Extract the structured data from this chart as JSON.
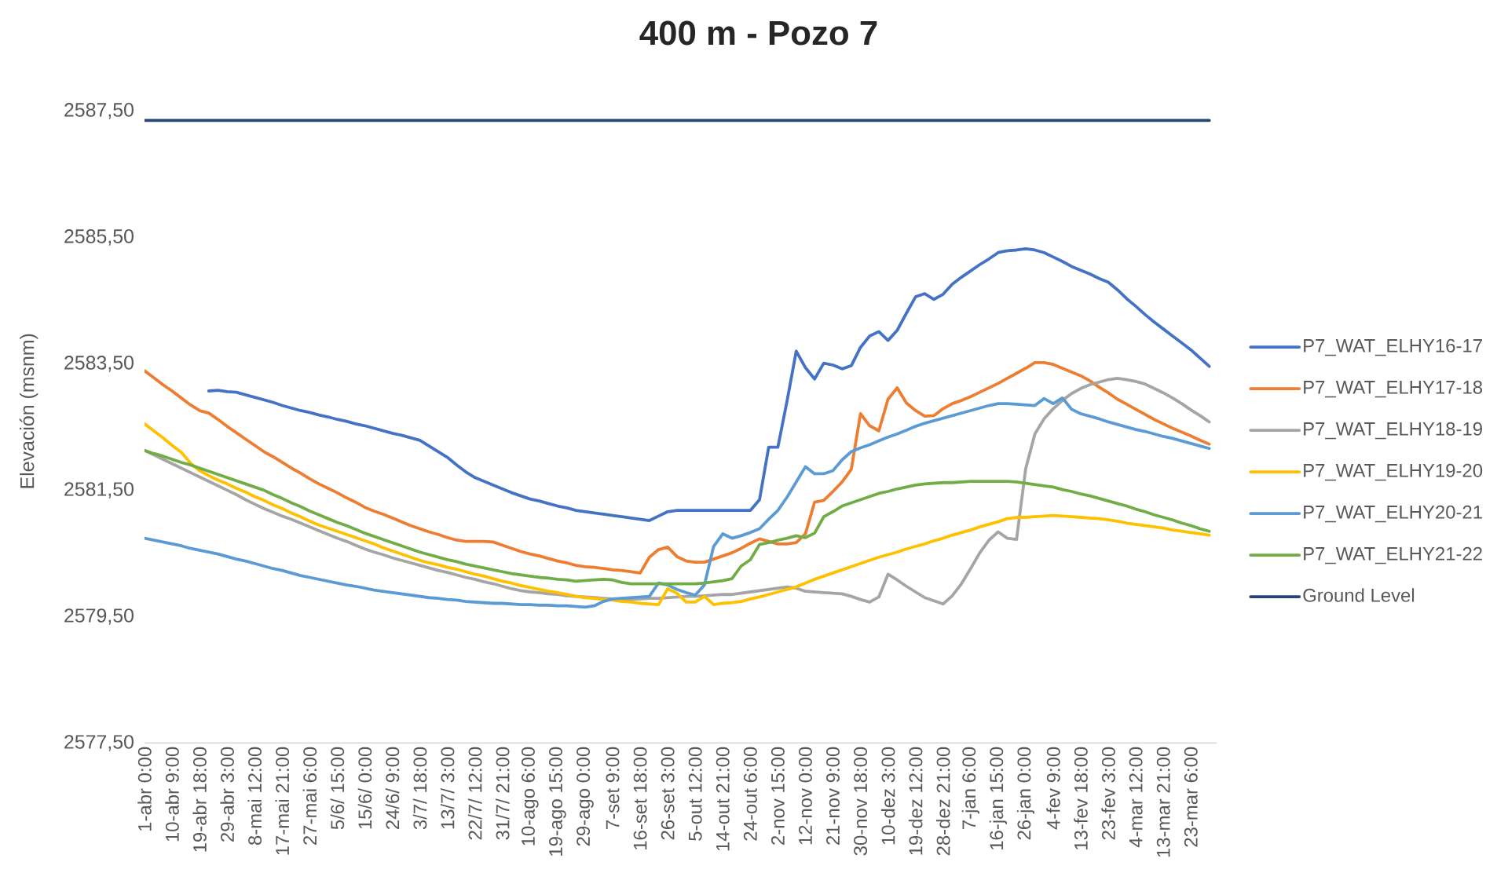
{
  "chart_data": {
    "type": "line",
    "title": "400 m - Pozo 7",
    "ylabel": "Elevación (msnm)",
    "categories": [
      "1-abr 0:00",
      null,
      null,
      "10-abr 9:00",
      null,
      null,
      "19-abr 18:00",
      null,
      null,
      "29-abr 3:00",
      null,
      null,
      "8-mai 12:00",
      null,
      null,
      "17-mai 21:00",
      null,
      null,
      "27-mai 6:00",
      null,
      null,
      "5/6/ 15:00",
      null,
      null,
      "15/6/ 0:00",
      null,
      null,
      "24/6/ 9:00",
      null,
      null,
      "3/7/ 18:00",
      null,
      null,
      "13/7/ 3:00",
      null,
      null,
      "22/7/ 12:00",
      null,
      null,
      "31/7/ 21:00",
      null,
      null,
      "10-ago 6:00",
      null,
      null,
      "19-ago 15:00",
      null,
      null,
      "29-ago 0:00",
      null,
      null,
      "7-set 9:00",
      null,
      null,
      "16-set 18:00",
      null,
      null,
      "26-set 3:00",
      null,
      null,
      "5-out 12:00",
      null,
      null,
      "14-out 21:00",
      null,
      null,
      "24-out 6:00",
      null,
      null,
      "2-nov 15:00",
      null,
      null,
      "12-nov 0:00",
      null,
      null,
      "21-nov 9:00",
      null,
      null,
      "30-nov 18:00",
      null,
      null,
      "10-dez 3:00",
      null,
      null,
      "19-dez 12:00",
      null,
      null,
      "28-dez 21:00",
      null,
      null,
      "7-jan 6:00",
      null,
      null,
      "16-jan 15:00",
      null,
      null,
      "26-jan 0:00",
      null,
      null,
      "4-fev 9:00",
      null,
      null,
      "13-fev 18:00",
      null,
      null,
      "23-fev 3:00",
      null,
      null,
      "4-mar 12:00",
      null,
      null,
      "13-mar 21:00",
      null,
      null,
      "23-mar 6:00",
      null,
      null
    ],
    "ylim": [
      2577.5,
      2587.5
    ],
    "yticks": [
      {
        "value": 2577.5,
        "label": "2577,50"
      },
      {
        "value": 2579.5,
        "label": "2579,50"
      },
      {
        "value": 2581.5,
        "label": "2581,50"
      },
      {
        "value": 2583.5,
        "label": "2583,50"
      },
      {
        "value": 2585.5,
        "label": "2585,50"
      },
      {
        "value": 2587.5,
        "label": "2587,50"
      }
    ],
    "legend": "right",
    "marker": "none",
    "series": [
      {
        "name": "P7_WAT_ELHY16-17",
        "color": "#4472c4",
        "values": [
          null,
          null,
          null,
          null,
          null,
          null,
          null,
          2583.07,
          2583.08,
          2583.06,
          2583.05,
          2583.01,
          2582.97,
          2582.93,
          2582.89,
          2582.84,
          2582.8,
          2582.76,
          2582.73,
          2582.69,
          2582.66,
          2582.62,
          2582.59,
          2582.55,
          2582.52,
          2582.48,
          2582.44,
          2582.4,
          2582.37,
          2582.33,
          2582.29,
          2582.2,
          2582.11,
          2582.02,
          2581.9,
          2581.79,
          2581.7,
          2581.64,
          2581.58,
          2581.52,
          2581.46,
          2581.41,
          2581.36,
          2581.33,
          2581.29,
          2581.25,
          2581.22,
          2581.18,
          2581.16,
          2581.14,
          2581.12,
          2581.1,
          2581.08,
          2581.06,
          2581.04,
          2581.02,
          2581.09,
          2581.16,
          2581.18,
          2581.18,
          2581.18,
          2581.18,
          2581.18,
          2581.18,
          2581.18,
          2581.18,
          2581.18,
          2581.35,
          2582.18,
          2582.18,
          2582.91,
          2583.7,
          2583.44,
          2583.26,
          2583.51,
          2583.48,
          2583.42,
          2583.47,
          2583.76,
          2583.94,
          2584.01,
          2583.87,
          2584.03,
          2584.3,
          2584.56,
          2584.61,
          2584.52,
          2584.6,
          2584.76,
          2584.87,
          2584.97,
          2585.07,
          2585.16,
          2585.26,
          2585.29,
          2585.3,
          2585.32,
          2585.3,
          2585.26,
          2585.19,
          2585.12,
          2585.04,
          2584.98,
          2584.92,
          2584.85,
          2584.79,
          2584.67,
          2584.53,
          2584.41,
          2584.28,
          2584.16,
          2584.05,
          2583.94,
          2583.83,
          2583.72,
          2583.59,
          2583.46
        ]
      },
      {
        "name": "P7_WAT_ELHY17-18",
        "color": "#ed7d31",
        "values": [
          2583.39,
          2583.28,
          2583.17,
          2583.07,
          2582.96,
          2582.85,
          2582.76,
          2582.72,
          2582.62,
          2582.51,
          2582.41,
          2582.31,
          2582.21,
          2582.11,
          2582.03,
          2581.94,
          2581.85,
          2581.77,
          2581.68,
          2581.6,
          2581.53,
          2581.46,
          2581.38,
          2581.31,
          2581.23,
          2581.17,
          2581.12,
          2581.06,
          2581.0,
          2580.94,
          2580.89,
          2580.84,
          2580.8,
          2580.75,
          2580.71,
          2580.69,
          2580.69,
          2580.69,
          2580.68,
          2580.63,
          2580.58,
          2580.53,
          2580.49,
          2580.46,
          2580.42,
          2580.38,
          2580.35,
          2580.31,
          2580.29,
          2580.28,
          2580.26,
          2580.24,
          2580.23,
          2580.21,
          2580.19,
          2580.44,
          2580.56,
          2580.6,
          2580.45,
          2580.38,
          2580.36,
          2580.36,
          2580.41,
          2580.46,
          2580.51,
          2580.58,
          2580.66,
          2580.73,
          2580.69,
          2580.65,
          2580.65,
          2580.67,
          2580.81,
          2581.31,
          2581.34,
          2581.48,
          2581.63,
          2581.83,
          2582.71,
          2582.52,
          2582.44,
          2582.94,
          2583.12,
          2582.88,
          2582.76,
          2582.67,
          2582.68,
          2582.79,
          2582.87,
          2582.92,
          2582.98,
          2583.05,
          2583.12,
          2583.19,
          2583.27,
          2583.35,
          2583.43,
          2583.52,
          2583.52,
          2583.49,
          2583.43,
          2583.37,
          2583.31,
          2583.23,
          2583.13,
          2583.04,
          2582.94,
          2582.86,
          2582.78,
          2582.7,
          2582.62,
          2582.55,
          2582.48,
          2582.42,
          2582.36,
          2582.29,
          2582.23
        ]
      },
      {
        "name": "P7_WAT_ELHY18-19",
        "color": "#a5a5a5",
        "values": [
          2582.13,
          2582.06,
          2581.99,
          2581.92,
          2581.85,
          2581.78,
          2581.71,
          2581.64,
          2581.57,
          2581.5,
          2581.43,
          2581.35,
          2581.28,
          2581.21,
          2581.15,
          2581.09,
          2581.04,
          2580.98,
          2580.92,
          2580.86,
          2580.8,
          2580.74,
          2580.69,
          2580.63,
          2580.57,
          2580.52,
          2580.48,
          2580.43,
          2580.39,
          2580.35,
          2580.31,
          2580.27,
          2580.23,
          2580.2,
          2580.16,
          2580.12,
          2580.09,
          2580.05,
          2580.02,
          2579.98,
          2579.94,
          2579.91,
          2579.89,
          2579.88,
          2579.86,
          2579.85,
          2579.83,
          2579.82,
          2579.81,
          2579.8,
          2579.79,
          2579.78,
          2579.78,
          2579.77,
          2579.78,
          2579.79,
          2579.79,
          2579.8,
          2579.81,
          2579.82,
          2579.82,
          2579.83,
          2579.84,
          2579.85,
          2579.85,
          2579.87,
          2579.89,
          2579.91,
          2579.93,
          2579.95,
          2579.97,
          2579.95,
          2579.9,
          2579.89,
          2579.88,
          2579.87,
          2579.86,
          2579.82,
          2579.77,
          2579.73,
          2579.81,
          2580.17,
          2580.08,
          2579.98,
          2579.89,
          2579.8,
          2579.75,
          2579.7,
          2579.83,
          2580.02,
          2580.26,
          2580.51,
          2580.71,
          2580.84,
          2580.74,
          2580.72,
          2581.84,
          2582.39,
          2582.63,
          2582.79,
          2582.92,
          2583.03,
          2583.11,
          2583.17,
          2583.21,
          2583.25,
          2583.27,
          2583.25,
          2583.22,
          2583.18,
          2583.11,
          2583.04,
          2582.96,
          2582.87,
          2582.77,
          2582.68,
          2582.58
        ]
      },
      {
        "name": "P7_WAT_ELHY19-20",
        "color": "#ffc000",
        "values": [
          2582.55,
          2582.44,
          2582.33,
          2582.21,
          2582.1,
          2581.93,
          2581.81,
          2581.73,
          2581.66,
          2581.6,
          2581.53,
          2581.47,
          2581.4,
          2581.34,
          2581.27,
          2581.21,
          2581.14,
          2581.08,
          2581.01,
          2580.95,
          2580.9,
          2580.85,
          2580.8,
          2580.75,
          2580.7,
          2580.65,
          2580.59,
          2580.54,
          2580.49,
          2580.44,
          2580.39,
          2580.35,
          2580.32,
          2580.28,
          2580.25,
          2580.21,
          2580.17,
          2580.14,
          2580.1,
          2580.06,
          2580.03,
          2579.99,
          2579.96,
          2579.93,
          2579.9,
          2579.88,
          2579.85,
          2579.82,
          2579.8,
          2579.79,
          2579.77,
          2579.76,
          2579.74,
          2579.73,
          2579.71,
          2579.7,
          2579.69,
          2579.94,
          2579.87,
          2579.73,
          2579.73,
          2579.82,
          2579.69,
          2579.71,
          2579.72,
          2579.74,
          2579.78,
          2579.81,
          2579.85,
          2579.89,
          2579.93,
          2579.97,
          2580.03,
          2580.09,
          2580.14,
          2580.19,
          2580.24,
          2580.29,
          2580.34,
          2580.39,
          2580.44,
          2580.48,
          2580.52,
          2580.57,
          2580.61,
          2580.65,
          2580.7,
          2580.74,
          2580.79,
          2580.83,
          2580.87,
          2580.92,
          2580.96,
          2581.0,
          2581.05,
          2581.07,
          2581.07,
          2581.08,
          2581.09,
          2581.1,
          2581.09,
          2581.08,
          2581.07,
          2581.06,
          2581.05,
          2581.03,
          2581.01,
          2580.98,
          2580.96,
          2580.94,
          2580.92,
          2580.9,
          2580.87,
          2580.85,
          2580.83,
          2580.81,
          2580.79
        ]
      },
      {
        "name": "P7_WAT_ELHY20-21",
        "color": "#5b9bd5",
        "values": [
          2580.74,
          2580.71,
          2580.68,
          2580.65,
          2580.62,
          2580.58,
          2580.55,
          2580.52,
          2580.49,
          2580.45,
          2580.41,
          2580.38,
          2580.34,
          2580.3,
          2580.26,
          2580.23,
          2580.19,
          2580.15,
          2580.12,
          2580.09,
          2580.06,
          2580.03,
          2580.0,
          2579.98,
          2579.95,
          2579.92,
          2579.9,
          2579.88,
          2579.86,
          2579.84,
          2579.82,
          2579.8,
          2579.79,
          2579.77,
          2579.76,
          2579.74,
          2579.73,
          2579.72,
          2579.71,
          2579.71,
          2579.7,
          2579.69,
          2579.69,
          2579.68,
          2579.68,
          2579.67,
          2579.67,
          2579.66,
          2579.65,
          2579.67,
          2579.74,
          2579.78,
          2579.79,
          2579.8,
          2579.81,
          2579.82,
          2580.03,
          2580.0,
          2579.93,
          2579.88,
          2579.84,
          2580.0,
          2580.61,
          2580.81,
          2580.74,
          2580.78,
          2580.83,
          2580.89,
          2581.04,
          2581.18,
          2581.39,
          2581.63,
          2581.87,
          2581.76,
          2581.76,
          2581.81,
          2581.98,
          2582.11,
          2582.17,
          2582.22,
          2582.28,
          2582.34,
          2582.39,
          2582.45,
          2582.51,
          2582.56,
          2582.6,
          2582.64,
          2582.68,
          2582.72,
          2582.76,
          2582.8,
          2582.84,
          2582.87,
          2582.87,
          2582.86,
          2582.85,
          2582.84,
          2582.95,
          2582.87,
          2582.96,
          2582.78,
          2582.71,
          2582.67,
          2582.63,
          2582.58,
          2582.54,
          2582.5,
          2582.46,
          2582.43,
          2582.39,
          2582.35,
          2582.32,
          2582.28,
          2582.24,
          2582.2,
          2582.16
        ]
      },
      {
        "name": "P7_WAT_ELHY21-22",
        "color": "#70ad47",
        "values": [
          2582.13,
          2582.08,
          2582.04,
          2581.99,
          2581.94,
          2581.9,
          2581.85,
          2581.8,
          2581.75,
          2581.7,
          2581.65,
          2581.6,
          2581.55,
          2581.5,
          2581.43,
          2581.37,
          2581.3,
          2581.24,
          2581.17,
          2581.11,
          2581.05,
          2580.99,
          2580.94,
          2580.88,
          2580.82,
          2580.77,
          2580.72,
          2580.67,
          2580.62,
          2580.57,
          2580.52,
          2580.48,
          2580.44,
          2580.4,
          2580.37,
          2580.33,
          2580.3,
          2580.27,
          2580.24,
          2580.21,
          2580.18,
          2580.16,
          2580.14,
          2580.12,
          2580.11,
          2580.09,
          2580.08,
          2580.06,
          2580.07,
          2580.08,
          2580.09,
          2580.08,
          2580.04,
          2580.02,
          2580.02,
          2580.02,
          2580.02,
          2580.02,
          2580.02,
          2580.02,
          2580.02,
          2580.03,
          2580.05,
          2580.07,
          2580.1,
          2580.3,
          2580.4,
          2580.64,
          2580.67,
          2580.71,
          2580.74,
          2580.78,
          2580.75,
          2580.82,
          2581.08,
          2581.16,
          2581.25,
          2581.3,
          2581.35,
          2581.4,
          2581.45,
          2581.48,
          2581.52,
          2581.55,
          2581.58,
          2581.6,
          2581.61,
          2581.62,
          2581.62,
          2581.63,
          2581.64,
          2581.64,
          2581.64,
          2581.64,
          2581.64,
          2581.63,
          2581.61,
          2581.59,
          2581.57,
          2581.55,
          2581.51,
          2581.48,
          2581.44,
          2581.41,
          2581.37,
          2581.33,
          2581.29,
          2581.25,
          2581.2,
          2581.16,
          2581.11,
          2581.07,
          2581.03,
          2580.98,
          2580.94,
          2580.89,
          2580.85
        ]
      },
      {
        "name": "Ground Level",
        "color": "#264478",
        "values": [
          2587.35,
          2587.35,
          2587.35,
          2587.35,
          2587.35,
          2587.35,
          2587.35,
          2587.35,
          2587.35,
          2587.35,
          2587.35,
          2587.35,
          2587.35,
          2587.35,
          2587.35,
          2587.35,
          2587.35,
          2587.35,
          2587.35,
          2587.35,
          2587.35,
          2587.35,
          2587.35,
          2587.35,
          2587.35,
          2587.35,
          2587.35,
          2587.35,
          2587.35,
          2587.35,
          2587.35,
          2587.35,
          2587.35,
          2587.35,
          2587.35,
          2587.35,
          2587.35,
          2587.35,
          2587.35,
          2587.35,
          2587.35,
          2587.35,
          2587.35,
          2587.35,
          2587.35,
          2587.35,
          2587.35,
          2587.35,
          2587.35,
          2587.35,
          2587.35,
          2587.35,
          2587.35,
          2587.35,
          2587.35,
          2587.35,
          2587.35,
          2587.35,
          2587.35,
          2587.35,
          2587.35,
          2587.35,
          2587.35,
          2587.35,
          2587.35,
          2587.35,
          2587.35,
          2587.35,
          2587.35,
          2587.35,
          2587.35,
          2587.35,
          2587.35,
          2587.35,
          2587.35,
          2587.35,
          2587.35,
          2587.35,
          2587.35,
          2587.35,
          2587.35,
          2587.35,
          2587.35,
          2587.35,
          2587.35,
          2587.35,
          2587.35,
          2587.35,
          2587.35,
          2587.35,
          2587.35,
          2587.35,
          2587.35,
          2587.35,
          2587.35,
          2587.35,
          2587.35,
          2587.35,
          2587.35,
          2587.35,
          2587.35,
          2587.35,
          2587.35,
          2587.35,
          2587.35,
          2587.35,
          2587.35,
          2587.35,
          2587.35,
          2587.35,
          2587.35,
          2587.35,
          2587.35,
          2587.35,
          2587.35,
          2587.35,
          2587.35
        ]
      }
    ]
  }
}
